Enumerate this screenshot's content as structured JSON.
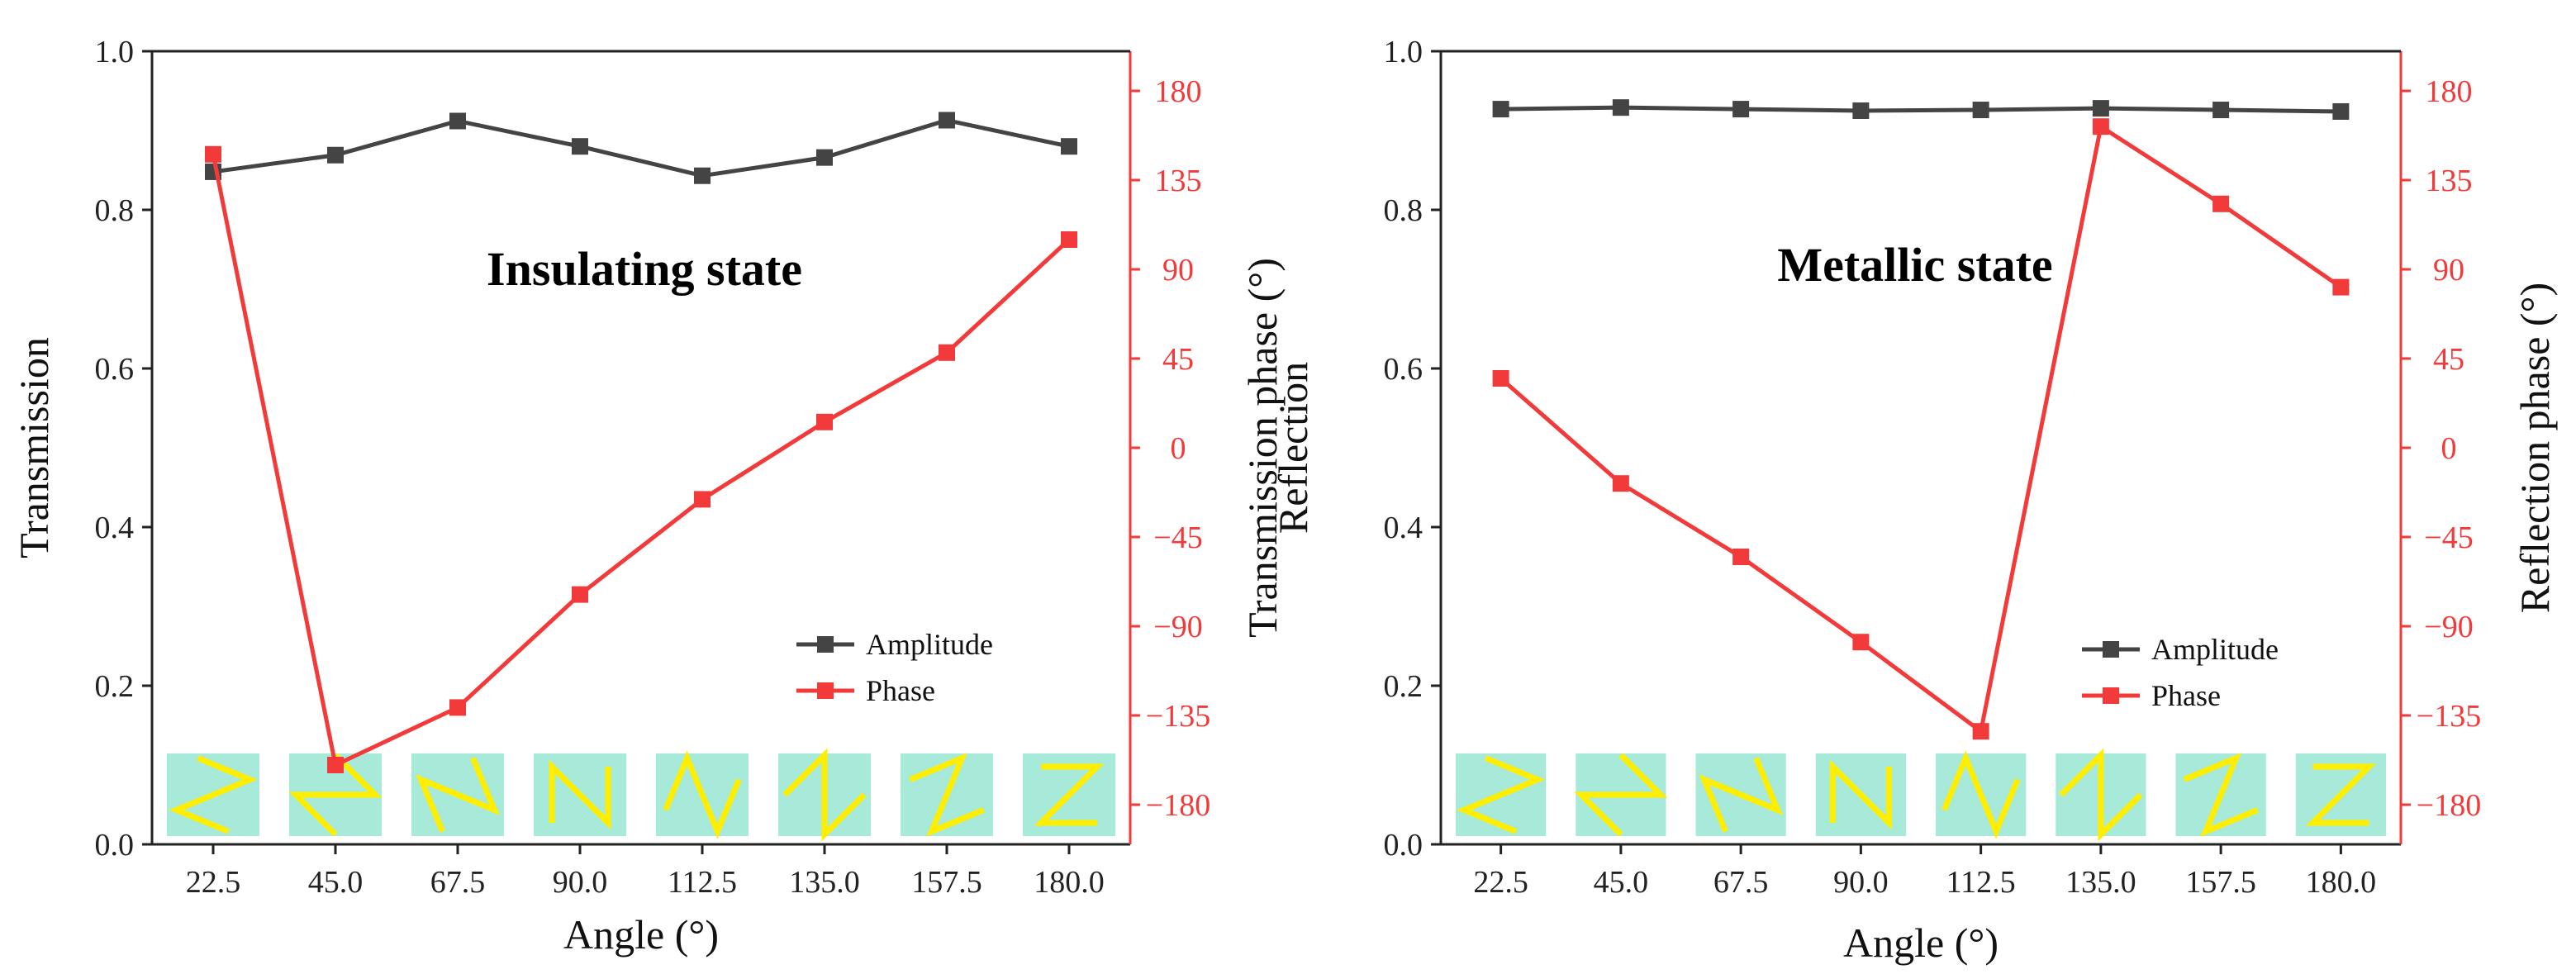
{
  "colors": {
    "amplitude": "#444444",
    "phase": "#f23a3a",
    "tile": "#a8ead9",
    "zigzag": "#ffee00"
  },
  "chart_data": [
    {
      "type": "line",
      "annotation": "Insulating state",
      "xlabel": "Angle (°)",
      "ylabel": "Transmission",
      "y2label": "Transmission phase (°)",
      "categories": [
        "22.5",
        "45.0",
        "67.5",
        "90.0",
        "112.5",
        "135.0",
        "157.5",
        "180.0"
      ],
      "ylim": [
        0,
        1
      ],
      "yticks": [
        "0.0",
        "0.2",
        "0.4",
        "0.6",
        "0.8",
        "1.0"
      ],
      "y2lim": [
        -200,
        200
      ],
      "y2ticks": [
        "180",
        "135",
        "90",
        "45",
        "0",
        "-45",
        "-90",
        "-135",
        "-180"
      ],
      "legend": [
        "Amplitude",
        "Phase"
      ],
      "series": [
        {
          "name": "Amplitude",
          "axis": "left",
          "values": [
            0.848,
            0.869,
            0.912,
            0.88,
            0.843,
            0.866,
            0.913,
            0.88
          ]
        },
        {
          "name": "Phase",
          "axis": "right",
          "values": [
            148,
            -160,
            -131,
            -74,
            -26,
            13,
            48,
            105
          ]
        }
      ],
      "tile_angles": [
        22.5,
        45.0,
        67.5,
        90.0,
        112.5,
        135.0,
        157.5,
        180.0
      ]
    },
    {
      "type": "line",
      "annotation": "Metallic state",
      "xlabel": "Angle (°)",
      "ylabel": "Reflection",
      "y2label": "Reflection phase (°)",
      "categories": [
        "22.5",
        "45.0",
        "67.5",
        "90.0",
        "112.5",
        "135.0",
        "157.5",
        "180.0"
      ],
      "ylim": [
        0,
        1
      ],
      "yticks": [
        "0.0",
        "0.2",
        "0.4",
        "0.6",
        "0.8",
        "1.0"
      ],
      "y2lim": [
        -200,
        200
      ],
      "y2ticks": [
        "180",
        "135",
        "90",
        "45",
        "0",
        "-45",
        "-90",
        "-135",
        "-180"
      ],
      "legend": [
        "Amplitude",
        "Phase"
      ],
      "series": [
        {
          "name": "Amplitude",
          "axis": "left",
          "values": [
            0.927,
            0.929,
            0.927,
            0.925,
            0.926,
            0.928,
            0.926,
            0.924
          ]
        },
        {
          "name": "Phase",
          "axis": "right",
          "values": [
            35,
            -18,
            -55,
            -98,
            -143,
            162,
            123,
            81
          ]
        }
      ],
      "tile_angles": [
        22.5,
        45.0,
        67.5,
        90.0,
        112.5,
        135.0,
        157.5,
        180.0
      ]
    }
  ]
}
